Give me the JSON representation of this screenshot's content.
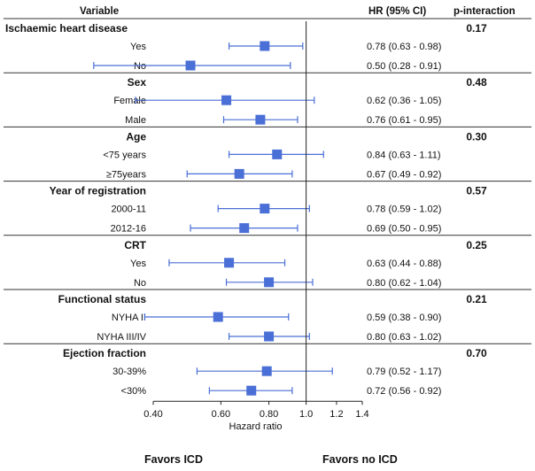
{
  "chart_data": {
    "type": "forest",
    "headers": {
      "variable": "Variable",
      "hr": "HR (95% CI)",
      "p": "p-interaction"
    },
    "xlabel": "Hazard ratio",
    "xscale": "log",
    "xlim": [
      0.4,
      1.4
    ],
    "xticks": [
      {
        "value": 0.4,
        "label": "0.40"
      },
      {
        "value": 0.6,
        "label": "0.60"
      },
      {
        "value": 0.8,
        "label": "0.80"
      },
      {
        "value": 1.0,
        "label": "1.0"
      },
      {
        "value": 1.2,
        "label": "1.2"
      },
      {
        "value": 1.4,
        "label": "1.4"
      }
    ],
    "reference_line": 1.0,
    "marker_color": "#4a6fd6",
    "favors_left": "Favors ICD",
    "favors_right": "Favors no ICD",
    "groups": [
      {
        "label": "Ischaemic heart disease",
        "p": "0.17",
        "rows": [
          {
            "label": "Yes",
            "hr": 0.78,
            "lo": 0.63,
            "hi": 0.98,
            "text": "0.78 (0.63 - 0.98)"
          },
          {
            "label": "No",
            "hr": 0.5,
            "lo": 0.28,
            "hi": 0.91,
            "text": "0.50 (0.28 - 0.91)"
          }
        ]
      },
      {
        "label": "Sex",
        "p": "0.48",
        "rows": [
          {
            "label": "Female",
            "hr": 0.62,
            "lo": 0.36,
            "hi": 1.05,
            "text": "0.62 (0.36 - 1.05)"
          },
          {
            "label": "Male",
            "hr": 0.76,
            "lo": 0.61,
            "hi": 0.95,
            "text": "0.76 (0.61 - 0.95)"
          }
        ]
      },
      {
        "label": "Age",
        "p": "0.30",
        "rows": [
          {
            "label": "<75 years",
            "hr": 0.84,
            "lo": 0.63,
            "hi": 1.11,
            "text": "0.84 (0.63 - 1.11)"
          },
          {
            "label": "≥75years",
            "hr": 0.67,
            "lo": 0.49,
            "hi": 0.92,
            "text": "0.67 (0.49 - 0.92)"
          }
        ]
      },
      {
        "label": "Year of registration",
        "p": "0.57",
        "rows": [
          {
            "label": "2000-11",
            "hr": 0.78,
            "lo": 0.59,
            "hi": 1.02,
            "text": "0.78 (0.59 - 1.02)"
          },
          {
            "label": "2012-16",
            "hr": 0.69,
            "lo": 0.5,
            "hi": 0.95,
            "text": "0.69 (0.50 - 0.95)"
          }
        ]
      },
      {
        "label": "CRT",
        "p": "0.25",
        "rows": [
          {
            "label": "Yes",
            "hr": 0.63,
            "lo": 0.44,
            "hi": 0.88,
            "text": "0.63 (0.44 - 0.88)"
          },
          {
            "label": "No",
            "hr": 0.8,
            "lo": 0.62,
            "hi": 1.04,
            "text": "0.80 (0.62 - 1.04)"
          }
        ]
      },
      {
        "label": "Functional status",
        "p": "0.21",
        "rows": [
          {
            "label": "NYHA II",
            "hr": 0.59,
            "lo": 0.38,
            "hi": 0.9,
            "text": "0.59 (0.38 - 0.90)"
          },
          {
            "label": "NYHA III/IV",
            "hr": 0.8,
            "lo": 0.63,
            "hi": 1.02,
            "text": "0.80 (0.63 - 1.02)"
          }
        ]
      },
      {
        "label": "Ejection fraction",
        "p": "0.70",
        "rows": [
          {
            "label": "30-39%",
            "hr": 0.79,
            "lo": 0.52,
            "hi": 1.17,
            "text": "0.79 (0.52 - 1.17)"
          },
          {
            "label": "<30%",
            "hr": 0.72,
            "lo": 0.56,
            "hi": 0.92,
            "text": "0.72 (0.56 - 0.92)"
          }
        ]
      }
    ]
  }
}
